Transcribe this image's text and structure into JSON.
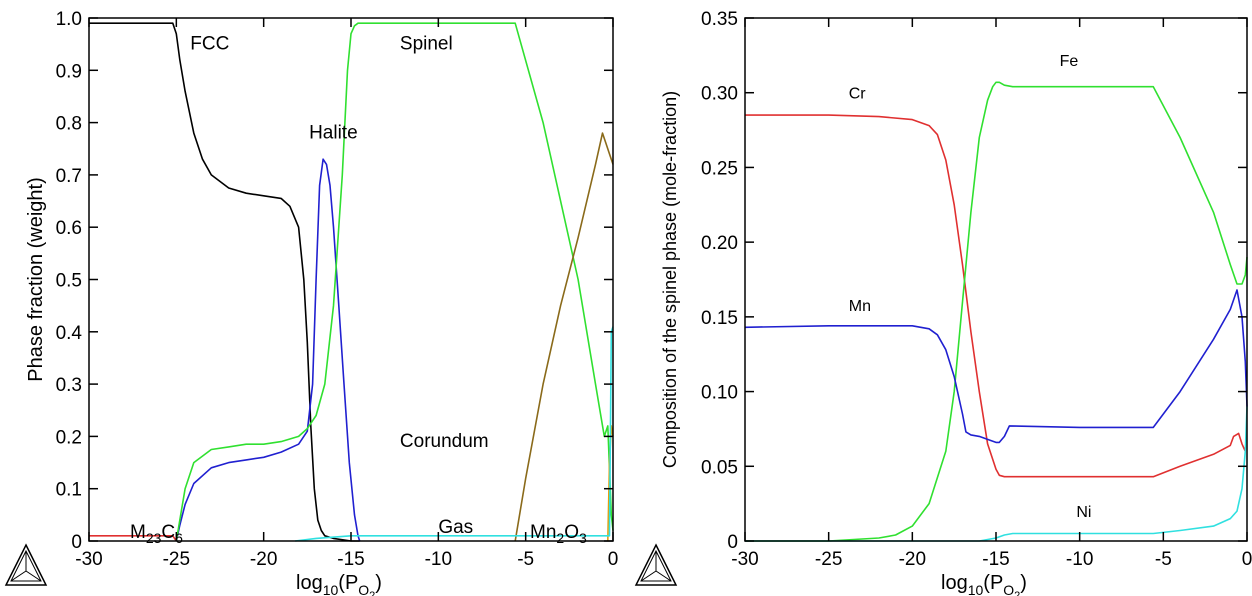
{
  "chart_data": [
    {
      "type": "line",
      "xlabel_base": "log",
      "xlabel_base_sub": "10",
      "xlabel_paren_open": "(P",
      "xlabel_p_sub": "O",
      "xlabel_p_subsub": "2",
      "xlabel_paren_close": ")",
      "ylabel": "Phase fraction (weight)",
      "xlim": [
        -30,
        0
      ],
      "ylim": [
        0,
        1.0
      ],
      "xticks": [
        -30,
        -25,
        -20,
        -15,
        -10,
        -5,
        0
      ],
      "xtick_labels": [
        "-30",
        "-25",
        "-20",
        "-15",
        "-10",
        "-5",
        "0"
      ],
      "yticks": [
        0,
        0.1,
        0.2,
        0.3,
        0.4,
        0.5,
        0.6,
        0.7,
        0.8,
        0.9,
        1.0
      ],
      "ytick_labels": [
        "0",
        "0.1",
        "0.2",
        "0.3",
        "0.4",
        "0.5",
        "0.6",
        "0.7",
        "0.8",
        "0.9",
        "1.0"
      ],
      "grid": false,
      "series": [
        {
          "name": "M23C6",
          "color": "#e03030",
          "x": [
            -30,
            -25.2,
            -25.0
          ],
          "y": [
            0.01,
            0.01,
            0.0
          ]
        },
        {
          "name": "FCC",
          "color": "#000000",
          "x": [
            -30,
            -25.2,
            -25.0,
            -24.8,
            -24.5,
            -24,
            -23.5,
            -23,
            -22,
            -21,
            -20,
            -19,
            -18.5,
            -18,
            -17.7,
            -17.5,
            -17.3,
            -17.1,
            -16.9,
            -16.7,
            -16.5,
            -16,
            -15,
            -14.5
          ],
          "y": [
            0.99,
            0.99,
            0.97,
            0.92,
            0.86,
            0.78,
            0.73,
            0.7,
            0.675,
            0.665,
            0.66,
            0.655,
            0.64,
            0.6,
            0.5,
            0.38,
            0.22,
            0.1,
            0.04,
            0.02,
            0.01,
            0.005,
            0.0,
            0.0
          ]
        },
        {
          "name": "Halite",
          "color": "#2020d0",
          "x": [
            -25,
            -24.8,
            -24.5,
            -24,
            -23,
            -22,
            -21,
            -20,
            -19,
            -18,
            -17.5,
            -17.2,
            -17.0,
            -16.8,
            -16.6,
            -16.4,
            -16.2,
            -16.0,
            -15.7,
            -15.4,
            -15.1,
            -14.8,
            -14.6,
            -14.5
          ],
          "y": [
            0.0,
            0.03,
            0.07,
            0.11,
            0.14,
            0.15,
            0.155,
            0.16,
            0.17,
            0.185,
            0.21,
            0.3,
            0.5,
            0.68,
            0.73,
            0.72,
            0.68,
            0.6,
            0.45,
            0.3,
            0.15,
            0.05,
            0.01,
            0.0
          ]
        },
        {
          "name": "Spinel",
          "color": "#30e030",
          "x": [
            -25,
            -24.8,
            -24.5,
            -24,
            -23,
            -22,
            -21,
            -20,
            -19,
            -18,
            -17.5,
            -17.0,
            -16.5,
            -16.0,
            -15.5,
            -15.2,
            -15.0,
            -14.8,
            -14.6,
            -14.5,
            -14.2,
            -5.6,
            -4,
            -2,
            -1,
            -0.5,
            -0.3,
            -0.1,
            0
          ],
          "y": [
            0.0,
            0.04,
            0.1,
            0.15,
            0.175,
            0.18,
            0.185,
            0.185,
            0.19,
            0.2,
            0.215,
            0.24,
            0.3,
            0.45,
            0.7,
            0.9,
            0.97,
            0.985,
            0.99,
            0.99,
            0.99,
            0.99,
            0.8,
            0.5,
            0.3,
            0.2,
            0.22,
            0.05,
            0.02
          ]
        },
        {
          "name": "Corundum",
          "color": "#8a6a1a",
          "x": [
            -5.6,
            -5,
            -4,
            -3,
            -2,
            -1,
            -0.6,
            -0.4,
            -0.2,
            0
          ],
          "y": [
            0.0,
            0.12,
            0.3,
            0.45,
            0.58,
            0.72,
            0.78,
            0.76,
            0.74,
            0.72
          ]
        },
        {
          "name": "Mn2O3",
          "color": "#e0a010",
          "x": [
            -0.3,
            -0.2,
            -0.1,
            0
          ],
          "y": [
            0.0,
            0.15,
            0.22,
            0.2
          ]
        },
        {
          "name": "Gas",
          "color": "#30e0e0",
          "x": [
            -18.2,
            -17,
            -15,
            -10,
            -5,
            -1,
            -0.2,
            -0.1,
            0
          ],
          "y": [
            0.0,
            0.005,
            0.01,
            0.01,
            0.01,
            0.01,
            0.01,
            0.4,
            0.41
          ]
        }
      ],
      "annotations": [
        {
          "text": "FCC",
          "x": -24.2,
          "y": 0.94
        },
        {
          "text": "Spinel",
          "x": -12.2,
          "y": 0.94
        },
        {
          "text": "Halite",
          "x": -17.4,
          "y": 0.77
        },
        {
          "text": "Corundum",
          "x": -12.2,
          "y": 0.18
        },
        {
          "text": "Gas",
          "x": -10,
          "y": 0.015
        }
      ],
      "label_m23c6": {
        "base": "M",
        "sub1": "23",
        "mid": "C",
        "sub2": "6"
      },
      "label_mn2o3": {
        "base": "Mn",
        "sub1": "2",
        "mid": "O",
        "sub2": "3"
      }
    },
    {
      "type": "line",
      "xlabel_base": "log",
      "xlabel_base_sub": "10",
      "xlabel_paren_open": "(P",
      "xlabel_p_sub": "O",
      "xlabel_p_subsub": "2",
      "xlabel_paren_close": ")",
      "ylabel": "Composition of the spinel phase (mole-fraction)",
      "xlim": [
        -30,
        0
      ],
      "ylim": [
        0,
        0.35
      ],
      "xticks": [
        -30,
        -25,
        -20,
        -15,
        -10,
        -5,
        0
      ],
      "xtick_labels": [
        "-30",
        "-25",
        "-20",
        "-15",
        "-10",
        "-5",
        "0"
      ],
      "yticks": [
        0,
        0.05,
        0.1,
        0.15,
        0.2,
        0.25,
        0.3,
        0.35
      ],
      "ytick_labels": [
        "0",
        "0.05",
        "0.10",
        "0.15",
        "0.20",
        "0.25",
        "0.30",
        "0.35"
      ],
      "grid": false,
      "series": [
        {
          "name": "Cr",
          "color": "#e03030",
          "x": [
            -30,
            -25,
            -22,
            -20,
            -19,
            -18.5,
            -18,
            -17.5,
            -17,
            -16.5,
            -16,
            -15.5,
            -15.0,
            -14.8,
            -14.5,
            -14,
            -10,
            -5.6,
            -4,
            -2,
            -1,
            -0.8,
            -0.5,
            -0.3,
            -0.1
          ],
          "y": [
            0.285,
            0.285,
            0.284,
            0.282,
            0.278,
            0.272,
            0.255,
            0.225,
            0.185,
            0.14,
            0.1,
            0.065,
            0.048,
            0.044,
            0.043,
            0.043,
            0.043,
            0.043,
            0.05,
            0.058,
            0.064,
            0.07,
            0.072,
            0.065,
            0.06
          ]
        },
        {
          "name": "Fe",
          "color": "#30e030",
          "x": [
            -30,
            -25,
            -22,
            -21,
            -20,
            -19,
            -18,
            -17.5,
            -17,
            -16.5,
            -16,
            -15.5,
            -15.2,
            -15.0,
            -14.8,
            -14.5,
            -14,
            -10,
            -5.6,
            -4,
            -2,
            -1,
            -0.6,
            -0.3,
            -0.1,
            0
          ],
          "y": [
            0.0,
            0.0,
            0.002,
            0.004,
            0.01,
            0.025,
            0.06,
            0.1,
            0.16,
            0.22,
            0.27,
            0.295,
            0.304,
            0.307,
            0.307,
            0.305,
            0.304,
            0.304,
            0.304,
            0.27,
            0.22,
            0.185,
            0.172,
            0.172,
            0.178,
            0.19
          ]
        },
        {
          "name": "Mn",
          "color": "#2020d0",
          "x": [
            -30,
            -25,
            -20,
            -19,
            -18.5,
            -18,
            -17.5,
            -17.0,
            -16.8,
            -16.5,
            -16,
            -15.5,
            -15.0,
            -14.8,
            -14.5,
            -14.2,
            -10,
            -5.6,
            -4,
            -2,
            -1,
            -0.6,
            -0.3,
            -0.1,
            0
          ],
          "y": [
            0.143,
            0.144,
            0.144,
            0.142,
            0.138,
            0.128,
            0.11,
            0.085,
            0.073,
            0.071,
            0.07,
            0.068,
            0.066,
            0.066,
            0.07,
            0.077,
            0.076,
            0.076,
            0.1,
            0.135,
            0.155,
            0.168,
            0.15,
            0.12,
            0.09
          ]
        },
        {
          "name": "Ni",
          "color": "#30e0e0",
          "x": [
            -30,
            -16,
            -15,
            -14.5,
            -14,
            -10,
            -5.6,
            -4,
            -2,
            -1,
            -0.6,
            -0.3,
            -0.1,
            0
          ],
          "y": [
            0.0,
            0.0,
            0.002,
            0.004,
            0.005,
            0.005,
            0.005,
            0.007,
            0.01,
            0.015,
            0.02,
            0.035,
            0.06,
            0.09
          ]
        }
      ],
      "annotations": [
        {
          "text": "Cr",
          "x": -23.8,
          "y": 0.296
        },
        {
          "text": "Fe",
          "x": -11.2,
          "y": 0.318
        },
        {
          "text": "Mn",
          "x": -23.8,
          "y": 0.154
        },
        {
          "text": "Ni",
          "x": -10.2,
          "y": 0.016
        }
      ]
    }
  ]
}
